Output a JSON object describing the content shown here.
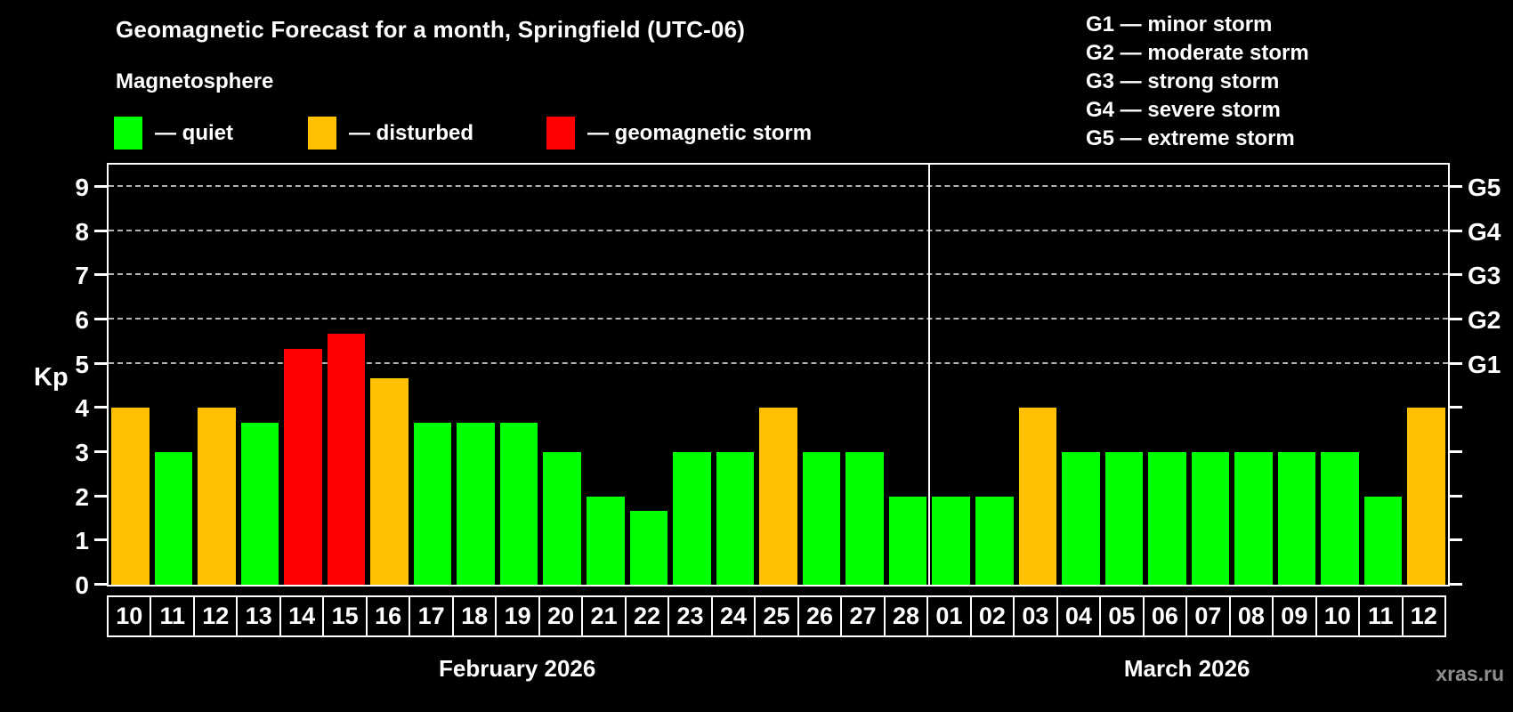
{
  "header": {
    "title": "Geomagnetic Forecast for a month, Springfield (UTC-06)",
    "subtitle": "Magnetosphere"
  },
  "legend": {
    "items": [
      {
        "status": "quiet",
        "label": "— quiet",
        "color": "#00ff00"
      },
      {
        "status": "disturbed",
        "label": "— disturbed",
        "color": "#ffc000"
      },
      {
        "status": "storm",
        "label": "— geomagnetic storm",
        "color": "#ff0000"
      }
    ]
  },
  "g_legend": {
    "lines": [
      "G1 — minor storm",
      "G2 — moderate storm",
      "G3 — strong storm",
      "G4 — severe storm",
      "G5 — extreme storm"
    ]
  },
  "chart_data": {
    "type": "bar",
    "title": "Geomagnetic Forecast for a month, Springfield (UTC-06)",
    "ylabel": "Kp",
    "ylim": [
      0,
      9.5
    ],
    "yticks": [
      0,
      1,
      2,
      3,
      4,
      5,
      6,
      7,
      8,
      9
    ],
    "gridlines": [
      5,
      6,
      7,
      8,
      9
    ],
    "grid_color": "#b3b3b3",
    "right_axis": [
      {
        "level": 5,
        "label": "G1"
      },
      {
        "level": 6,
        "label": "G2"
      },
      {
        "level": 7,
        "label": "G3"
      },
      {
        "level": 8,
        "label": "G4"
      },
      {
        "level": 9,
        "label": "G5"
      }
    ],
    "colors": {
      "quiet": "#00ff00",
      "disturbed": "#ffc000",
      "storm": "#ff0000"
    },
    "months": [
      {
        "label": "February 2026",
        "days": 19
      },
      {
        "label": "March 2026",
        "days": 12
      }
    ],
    "bars": [
      {
        "day": "10",
        "value": 4.0,
        "status": "disturbed"
      },
      {
        "day": "11",
        "value": 3.0,
        "status": "quiet"
      },
      {
        "day": "12",
        "value": 4.0,
        "status": "disturbed"
      },
      {
        "day": "13",
        "value": 3.67,
        "status": "quiet"
      },
      {
        "day": "14",
        "value": 5.33,
        "status": "storm"
      },
      {
        "day": "15",
        "value": 5.67,
        "status": "storm"
      },
      {
        "day": "16",
        "value": 4.67,
        "status": "disturbed"
      },
      {
        "day": "17",
        "value": 3.67,
        "status": "quiet"
      },
      {
        "day": "18",
        "value": 3.67,
        "status": "quiet"
      },
      {
        "day": "19",
        "value": 3.67,
        "status": "quiet"
      },
      {
        "day": "20",
        "value": 3.0,
        "status": "quiet"
      },
      {
        "day": "21",
        "value": 2.0,
        "status": "quiet"
      },
      {
        "day": "22",
        "value": 1.67,
        "status": "quiet"
      },
      {
        "day": "23",
        "value": 3.0,
        "status": "quiet"
      },
      {
        "day": "24",
        "value": 3.0,
        "status": "quiet"
      },
      {
        "day": "25",
        "value": 4.0,
        "status": "disturbed"
      },
      {
        "day": "26",
        "value": 3.0,
        "status": "quiet"
      },
      {
        "day": "27",
        "value": 3.0,
        "status": "quiet"
      },
      {
        "day": "28",
        "value": 2.0,
        "status": "quiet"
      },
      {
        "day": "01",
        "value": 2.0,
        "status": "quiet"
      },
      {
        "day": "02",
        "value": 2.0,
        "status": "quiet"
      },
      {
        "day": "03",
        "value": 4.0,
        "status": "disturbed"
      },
      {
        "day": "04",
        "value": 3.0,
        "status": "quiet"
      },
      {
        "day": "05",
        "value": 3.0,
        "status": "quiet"
      },
      {
        "day": "06",
        "value": 3.0,
        "status": "quiet"
      },
      {
        "day": "07",
        "value": 3.0,
        "status": "quiet"
      },
      {
        "day": "08",
        "value": 3.0,
        "status": "quiet"
      },
      {
        "day": "09",
        "value": 3.0,
        "status": "quiet"
      },
      {
        "day": "10",
        "value": 3.0,
        "status": "quiet"
      },
      {
        "day": "11",
        "value": 2.0,
        "status": "quiet"
      },
      {
        "day": "12",
        "value": 4.0,
        "status": "disturbed"
      }
    ]
  },
  "footer": {
    "watermark": "xras.ru"
  }
}
